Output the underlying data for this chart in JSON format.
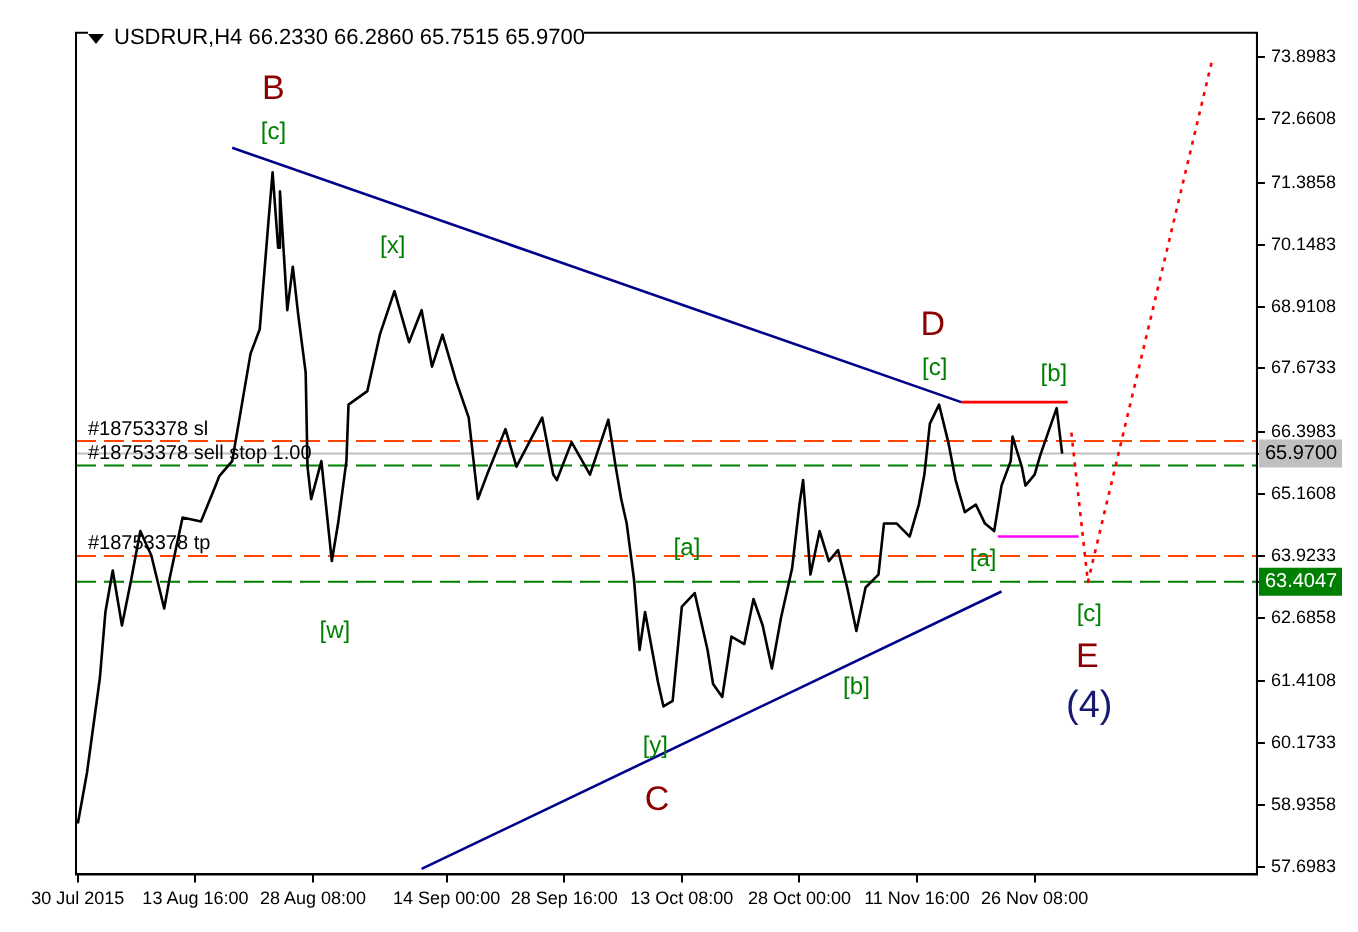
{
  "chart_data": {
    "type": "line",
    "title": "USDRUR,H4  66.2330 66.2860 65.7515 65.9700",
    "xlim": [
      "2015-07-29T18:30",
      "2015-12-24T01:30"
    ],
    "ylim": [
      57.55,
      74.39
    ],
    "xticks": [
      {
        "value": "2015-07-30",
        "label": "30 Jul 2015"
      },
      {
        "value": "2015-08-13T16:00",
        "label": "13 Aug 16:00"
      },
      {
        "value": "2015-08-28T08:00",
        "label": "28 Aug 08:00"
      },
      {
        "value": "2015-09-14T00:00",
        "label": "14 Sep 00:00"
      },
      {
        "value": "2015-09-28T16:00",
        "label": "28 Sep 16:00"
      },
      {
        "value": "2015-10-13T08:00",
        "label": "13 Oct 08:00"
      },
      {
        "value": "2015-10-28T00:00",
        "label": "28 Oct 00:00"
      },
      {
        "value": "2015-11-11T16:00",
        "label": "11 Nov 16:00"
      },
      {
        "value": "2015-11-26T08:00",
        "label": "26 Nov 08:00"
      }
    ],
    "yticks": [
      73.8983,
      72.6608,
      71.3858,
      70.1483,
      68.9108,
      67.6733,
      66.3983,
      {
        "value": 65.97,
        "label": "65.9700"
      },
      65.1608,
      63.9233,
      {
        "value": 63.4047,
        "label": "63.4047"
      },
      62.6858,
      61.4108,
      60.1733,
      58.9358,
      57.6983
    ],
    "marker": "none",
    "legend": false,
    "series": [
      {
        "color": "#000000",
        "line_style": "solid",
        "x": [
          "2015-07-30T00:00",
          "2015-07-31T03:30",
          "2015-08-01T18:00",
          "2015-08-02T10:30",
          "2015-08-03T08:30",
          "2015-08-04T12:00",
          "2015-08-05T15:30",
          "2015-08-06T19:00",
          "2015-08-08T04:00",
          "2015-08-09T18:30",
          "2015-08-10T11:00",
          "2015-08-12T01:30",
          "2015-08-14T08:30",
          "2015-08-16T04:30",
          "2015-08-16T15:30",
          "2015-08-18T06:00",
          "2015-08-20T13:00",
          "2015-08-21T16:30",
          "2015-08-22T20:00",
          "2015-08-23T07:00",
          "2015-08-23T23:30",
          "2015-08-24T05:00",
          "2015-08-25T03:00",
          "2015-08-25T19:30",
          "2015-08-26T12:00",
          "2015-08-27T10:00",
          "2015-08-27T15:30",
          "2015-08-28T02:30",
          "2015-08-29T09:00",
          "2015-08-30T16:15",
          "2015-08-31T11:00",
          "2015-09-01T12:00",
          "2015-09-01T18:15",
          "2015-09-04T02:30",
          "2015-09-05T16:00",
          "2015-09-07T11:45",
          "2015-09-09T07:30",
          "2015-09-10T21:00",
          "2015-09-12T04:15",
          "2015-09-13T11:30",
          "2015-09-15T03:30",
          "2015-09-16T18:00",
          "2015-09-17T10:30",
          "2015-09-17T21:30",
          "2015-09-19T01:00",
          "2015-09-21T08:00",
          "2015-09-22T17:00",
          "2015-09-25T22:00",
          "2015-09-27T07:00",
          "2015-09-27T18:00",
          "2015-09-29T14:00",
          "2015-10-01T21:00",
          "2015-10-04T04:00",
          "2015-10-05T02:00",
          "2015-10-05T18:30",
          "2015-10-06T11:00",
          "2015-10-07T09:00",
          "2015-10-08T01:30",
          "2015-10-08T18:00",
          "2015-10-10T08:30",
          "2015-10-11T01:00",
          "2015-10-12T04:30",
          "2015-10-13T08:00",
          "2015-10-14T22:30",
          "2015-10-16T13:00",
          "2015-10-17T05:30",
          "2015-10-18T09:00",
          "2015-10-19T12:30",
          "2015-10-21T03:00",
          "2015-10-22T06:30",
          "2015-10-23T10:00",
          "2015-10-24T13:30",
          "2015-10-25T17:00",
          "2015-10-27T02:00",
          "2015-10-28T00:00",
          "2015-10-28T11:00",
          "2015-10-29T09:00",
          "2015-10-30T12:30",
          "2015-10-31T16:00",
          "2015-11-01T19:30",
          "2015-11-02T23:00",
          "2015-11-04T02:30",
          "2015-11-05T06:00",
          "2015-11-06T20:30",
          "2015-11-07T13:00",
          "2015-11-09T03:30",
          "2015-11-10T18:00",
          "2015-11-11T21:30",
          "2015-11-12T14:00",
          "2015-11-13T06:30",
          "2015-11-14T10:00",
          "2015-11-15T13:30",
          "2015-11-16T11:30",
          "2015-11-17T15:00",
          "2015-11-19T00:00",
          "2015-11-20T03:30",
          "2015-11-21T07:00",
          "2015-11-22T05:00",
          "2015-11-23T08:30",
          "2015-11-23T14:00",
          "2015-11-24T17:30",
          "2015-11-25T04:30",
          "2015-11-26T08:00",
          "2015-11-27T00:30",
          "2015-11-28T04:00",
          "2015-11-29T02:00",
          "2015-11-29T18:30"
        ],
        "values": [
          58.57,
          59.59,
          61.48,
          62.8,
          63.63,
          62.53,
          63.44,
          64.42,
          63.93,
          62.87,
          63.48,
          64.69,
          64.61,
          65.33,
          65.52,
          65.82,
          67.97,
          68.46,
          70.73,
          71.6,
          70.09,
          71.22,
          68.84,
          69.71,
          68.73,
          67.59,
          65.71,
          65.06,
          65.82,
          63.82,
          64.57,
          65.82,
          66.95,
          67.22,
          68.35,
          69.22,
          68.2,
          68.84,
          67.71,
          68.35,
          67.44,
          66.69,
          65.71,
          65.06,
          65.55,
          66.46,
          65.71,
          66.69,
          65.55,
          65.44,
          66.2,
          65.55,
          66.65,
          65.71,
          65.06,
          64.57,
          63.44,
          62.04,
          62.8,
          61.4,
          60.91,
          61.02,
          62.91,
          63.18,
          62.04,
          61.36,
          61.1,
          62.31,
          62.16,
          63.06,
          62.53,
          61.67,
          62.69,
          63.67,
          64.95,
          65.44,
          63.55,
          64.42,
          63.82,
          64.04,
          63.29,
          62.42,
          63.29,
          63.55,
          64.57,
          64.57,
          64.31,
          64.95,
          65.55,
          66.57,
          66.95,
          66.2,
          65.44,
          64.8,
          64.95,
          64.57,
          64.42,
          65.33,
          65.82,
          66.31,
          65.71,
          65.33,
          65.55,
          65.93,
          66.46,
          66.88,
          65.97
        ]
      },
      {
        "color": "#00008b",
        "line_style": "solid",
        "x": [
          "2015-08-18T06:00",
          "2015-11-17T04:00"
        ],
        "values": [
          72.09,
          67.0
        ]
      },
      {
        "color": "#ff0000",
        "line_style": "solid",
        "x": [
          "2015-11-17T04:00",
          "2015-11-30T11:00"
        ],
        "values": [
          67.0,
          67.0
        ]
      },
      {
        "color": "#00008b",
        "line_style": "solid",
        "x": [
          "2015-09-10T21:00",
          "2015-11-22T05:00"
        ],
        "values": [
          57.66,
          63.21
        ]
      },
      {
        "color": "#ff00ff",
        "line_style": "solid",
        "x": [
          "2015-11-21T18:00",
          "2015-12-01T20:00"
        ],
        "values": [
          64.31,
          64.31
        ]
      },
      {
        "color": "#ff0000",
        "line_style": "dotted",
        "x": [
          "2015-11-30T22:00",
          "2015-12-02T23:30",
          "2015-12-18T13:30"
        ],
        "values": [
          66.39,
          63.4,
          73.9
        ]
      }
    ],
    "ref_lines": [
      {
        "axis": "y",
        "value": 66.22,
        "label": "#18753378 sl",
        "color": "#ff4500",
        "line_style": "dashed"
      },
      {
        "axis": "y",
        "value": 65.97,
        "color": "#c0c0c0",
        "line_style": "solid"
      },
      {
        "axis": "y",
        "value": 65.73,
        "label": "#18753378 sell stop 1.00",
        "color": "#008000",
        "line_style": "dashed"
      },
      {
        "axis": "y",
        "value": 63.9233,
        "label": "#18753378 tp",
        "color": "#ff4500",
        "line_style": "dashed"
      },
      {
        "axis": "y",
        "value": 63.4047,
        "color": "#008000",
        "line_style": "dashed"
      }
    ],
    "annotations": [
      "B",
      "C",
      "D",
      "E",
      "(4)",
      "[c]",
      "[x]",
      "[w]",
      "[y]",
      "[a]",
      "[b]",
      "[c]",
      "[b]",
      "[a]",
      "[c]"
    ]
  }
}
